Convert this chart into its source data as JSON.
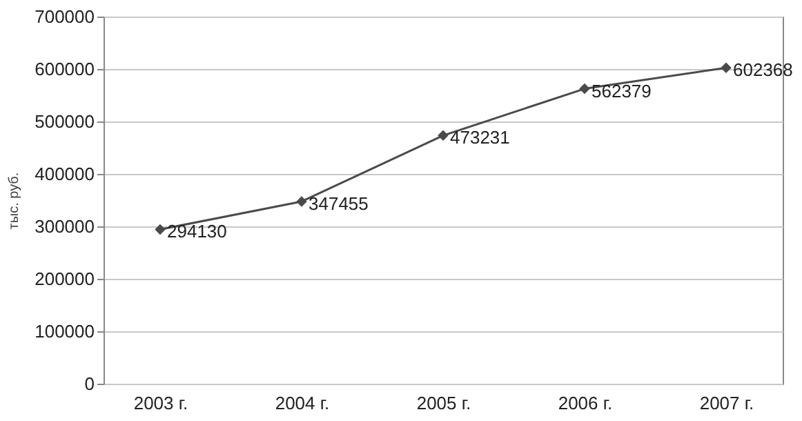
{
  "chart_data": {
    "type": "line",
    "ylabel": "тыс. руб.",
    "categories": [
      "2003 г.",
      "2004 г.",
      "2005 г.",
      "2006 г.",
      "2007 г."
    ],
    "series": [
      {
        "color": "#4a4a4a",
        "values": [
          294130,
          347455,
          473231,
          562379,
          602368
        ]
      }
    ],
    "ylim": [
      0,
      700000
    ],
    "yticks": [
      0,
      100000,
      200000,
      300000,
      400000,
      500000,
      600000,
      700000
    ],
    "grid": "y",
    "marker": "diamond",
    "line_style": "solid",
    "data_labels": true
  }
}
